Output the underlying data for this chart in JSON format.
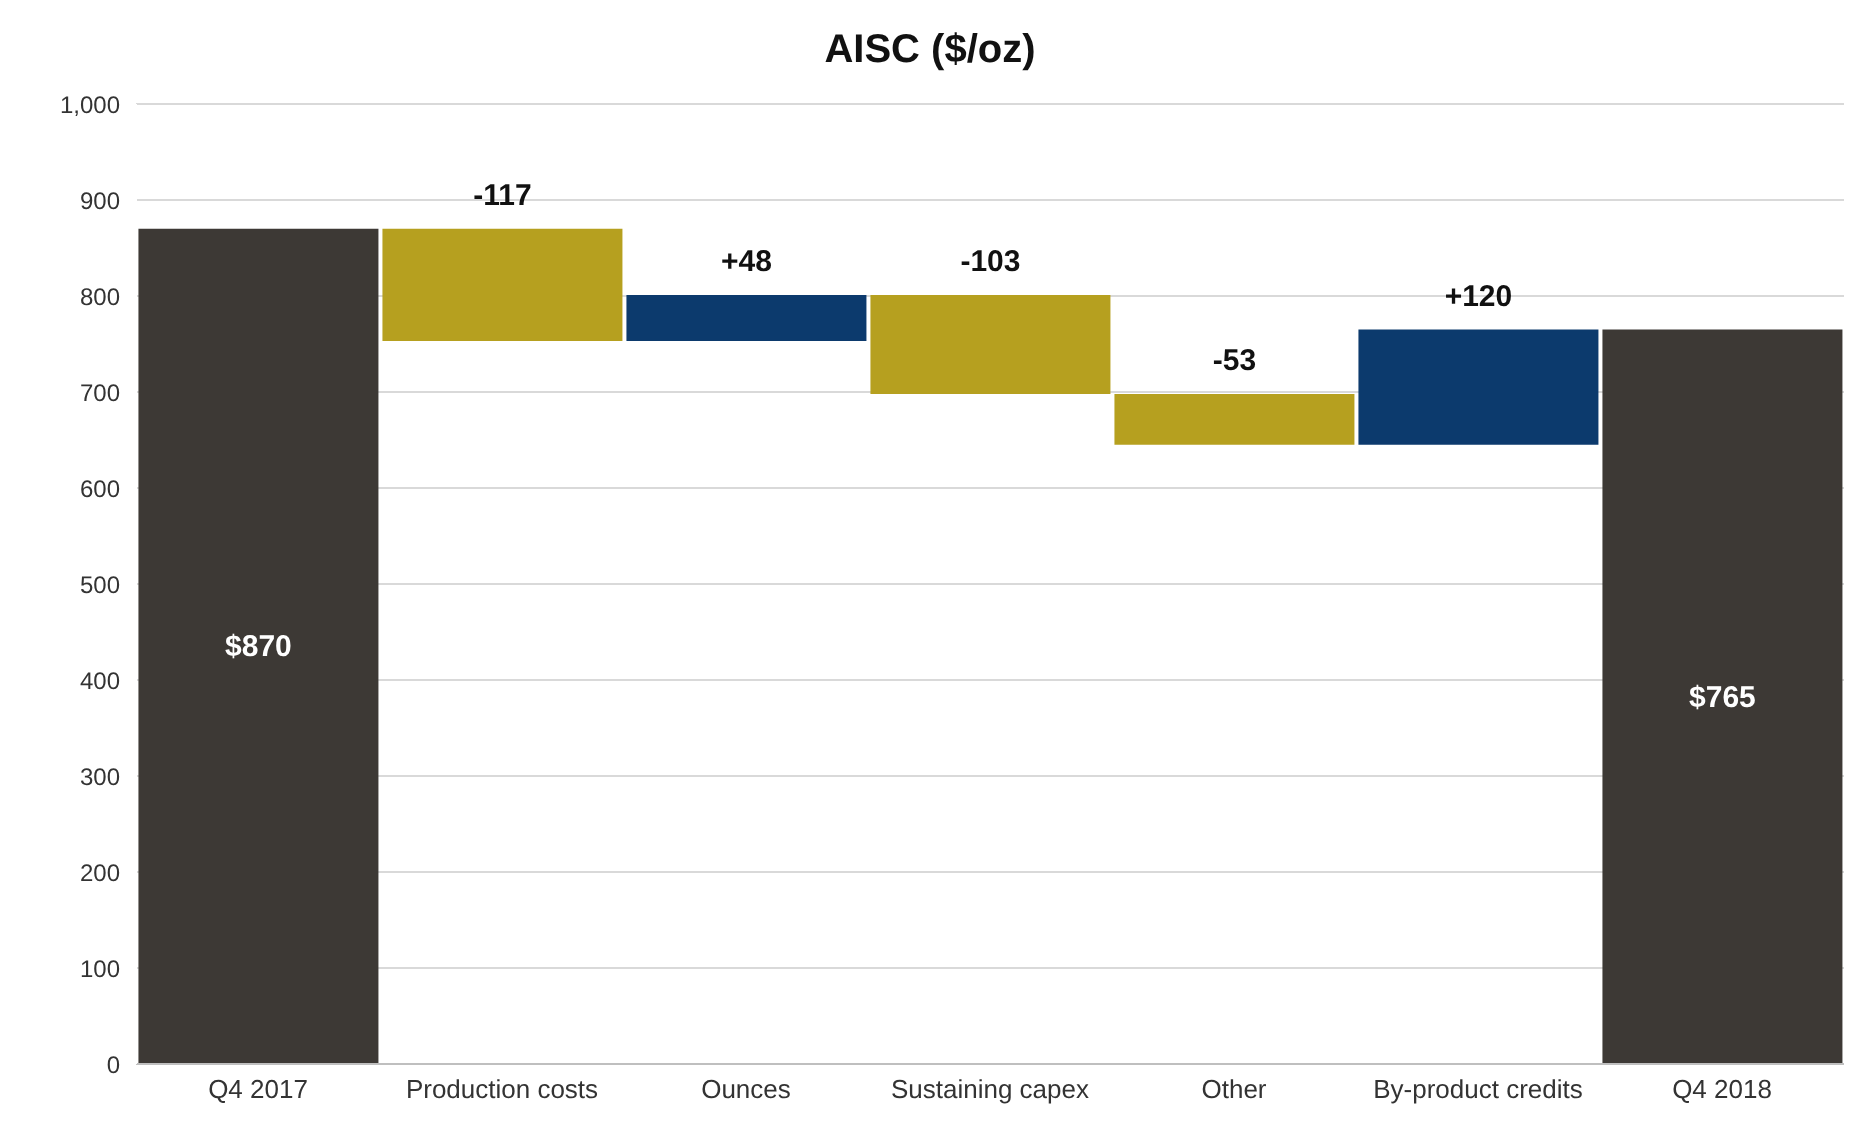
{
  "chart_data": {
    "type": "bar",
    "title": "AISC ($/oz)",
    "categories": [
      "Q4 2017",
      "Production costs",
      "Ounces",
      "Sustaining capex",
      "Other",
      "By-product credits",
      "Q4 2018"
    ],
    "values": [
      870,
      -117,
      48,
      -103,
      -53,
      120,
      765
    ],
    "base": [
      0,
      870,
      753,
      801,
      698,
      645,
      0
    ],
    "colors": [
      "#3d3935",
      "#b6a01f",
      "#0c3a6d",
      "#b6a01f",
      "#b6a01f",
      "#0c3a6d",
      "#3d3935"
    ],
    "value_labels": [
      "$870",
      "-117",
      "+48",
      "-103",
      "-53",
      "+120",
      "$765"
    ],
    "ylim": [
      0,
      1000
    ],
    "yticks": [
      0,
      100,
      200,
      300,
      400,
      500,
      600,
      700,
      800,
      900,
      {
        "value": 1000,
        "label": "1,000"
      }
    ],
    "grid": "y"
  }
}
